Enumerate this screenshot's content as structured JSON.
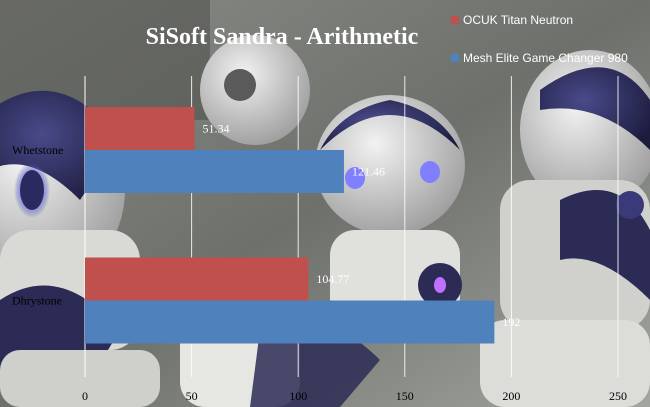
{
  "chart_data": {
    "type": "bar",
    "orientation": "horizontal",
    "title": "SiSoft Sandra - Arithmetic",
    "categories": [
      "Whetstone",
      "Dhrystone"
    ],
    "series": [
      {
        "name": "OCUK Titan Neutron",
        "color": "#c0504d",
        "values": [
          51.34,
          104.77
        ]
      },
      {
        "name": "Mesh Elite Game Changer 980",
        "color": "#4f81bd",
        "values": [
          121.46,
          192
        ]
      }
    ],
    "data_labels": [
      [
        "51.34",
        "104.77"
      ],
      [
        "121.46",
        "192"
      ]
    ],
    "xlim": [
      0,
      250
    ],
    "xticks": [
      0,
      50,
      100,
      150,
      200,
      250
    ],
    "xtick_labels": [
      "0",
      "50",
      "100",
      "150",
      "200",
      "250"
    ],
    "grid": "vertical",
    "legend_position": "top-right",
    "background": "photo of humanoid robots"
  }
}
